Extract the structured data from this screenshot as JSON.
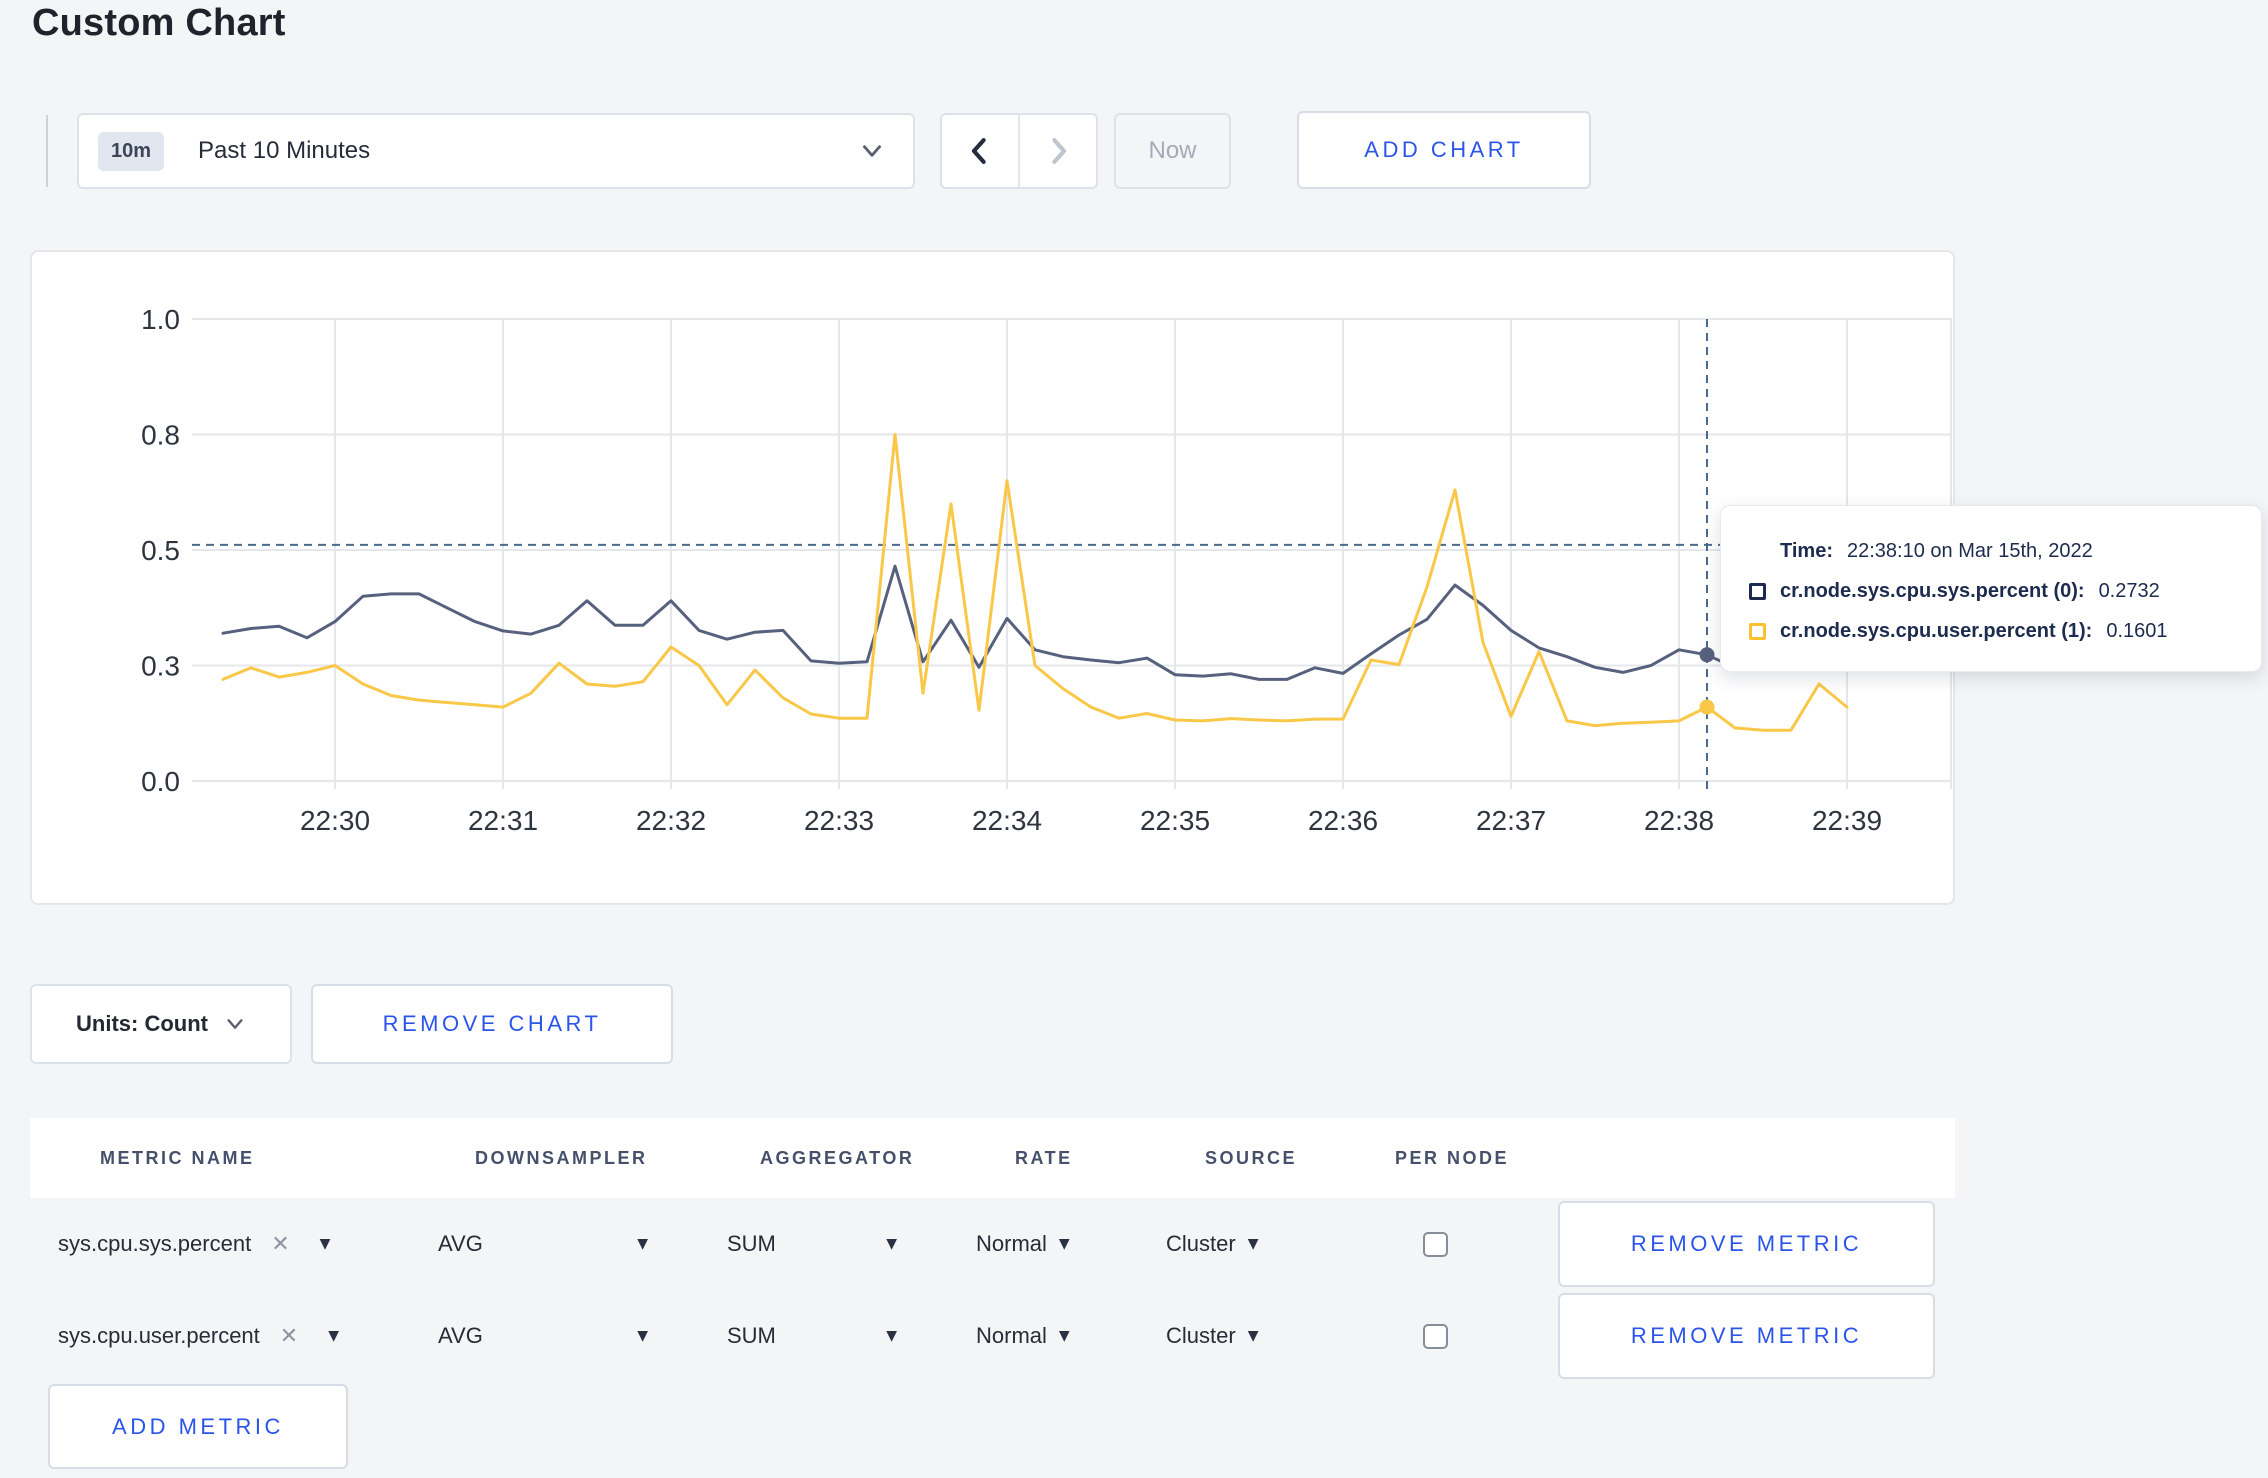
{
  "page": {
    "title": "Custom Chart",
    "background": "#f4f5f7",
    "accent_blue": "#2b55ea"
  },
  "toolbar": {
    "time_badge": "10m",
    "time_range_label": "Past 10 Minutes",
    "now_label": "Now",
    "add_chart_label": "ADD CHART"
  },
  "chart_data": {
    "type": "line",
    "title": "",
    "xlabel": "",
    "ylabel": "",
    "ylim": [
      0,
      1
    ],
    "grid": true,
    "legend_position": "none",
    "x_ticks": [
      "22:30",
      "22:31",
      "22:32",
      "22:33",
      "22:34",
      "22:35",
      "22:36",
      "22:37",
      "22:38",
      "22:39"
    ],
    "y_ticks": {
      "labels": [
        "0.0",
        "0.3",
        "0.5",
        "0.8",
        "1.0"
      ],
      "values": [
        0,
        0.25,
        0.5,
        0.75,
        1.0
      ]
    },
    "x_start": "22:29:20",
    "x_step_seconds": 10,
    "series": [
      {
        "name": "cr.node.sys.cpu.sys.percent",
        "color": "#57617e",
        "values": [
          0.32,
          0.33,
          0.335,
          0.31,
          0.345,
          0.4,
          0.405,
          0.405,
          0.375,
          0.345,
          0.325,
          0.318,
          0.337,
          0.39,
          0.337,
          0.337,
          0.39,
          0.326,
          0.307,
          0.322,
          0.326,
          0.26,
          0.255,
          0.258,
          0.465,
          0.258,
          0.348,
          0.246,
          0.352,
          0.284,
          0.269,
          0.262,
          0.256,
          0.266,
          0.23,
          0.227,
          0.232,
          0.22,
          0.22,
          0.245,
          0.233,
          0.275,
          0.316,
          0.35,
          0.424,
          0.38,
          0.326,
          0.288,
          0.269,
          0.246,
          0.235,
          0.25,
          0.284,
          0.2732,
          0.245,
          0.26,
          0.27,
          0.265,
          0.27
        ]
      },
      {
        "name": "cr.node.sys.cpu.user.percent",
        "color": "#f9c849",
        "values": [
          0.22,
          0.245,
          0.225,
          0.235,
          0.25,
          0.21,
          0.185,
          0.175,
          0.17,
          0.165,
          0.16,
          0.19,
          0.255,
          0.21,
          0.205,
          0.215,
          0.29,
          0.25,
          0.165,
          0.24,
          0.18,
          0.145,
          0.136,
          0.136,
          0.75,
          0.19,
          0.6,
          0.153,
          0.65,
          0.25,
          0.2,
          0.16,
          0.136,
          0.146,
          0.132,
          0.13,
          0.135,
          0.132,
          0.13,
          0.134,
          0.134,
          0.262,
          0.252,
          0.42,
          0.63,
          0.3,
          0.14,
          0.28,
          0.13,
          0.12,
          0.125,
          0.127,
          0.13,
          0.1601,
          0.115,
          0.11,
          0.11,
          0.21,
          0.16
        ]
      }
    ],
    "crosshair": {
      "time": "22:38:10",
      "y_value": 0.511,
      "series_values": [
        0.2732,
        0.1601
      ],
      "color": "#4a6a8f"
    },
    "gridline_color": "#e6e7ea",
    "axis_text_color": "#2e343e"
  },
  "tooltip": {
    "time_label": "Time:",
    "time_value": "22:38:10 on Mar 15th, 2022",
    "series": [
      {
        "label": "cr.node.sys.cpu.sys.percent (0):",
        "value": "0.2732",
        "color": "#1d2b4e"
      },
      {
        "label": "cr.node.sys.cpu.user.percent (1):",
        "value": "0.1601",
        "color": "#fdc02f"
      }
    ]
  },
  "chart_footer": {
    "units_label": "Units: Count",
    "remove_chart_label": "REMOVE CHART"
  },
  "metrics_table": {
    "headers": [
      "METRIC NAME",
      "DOWNSAMPLER",
      "AGGREGATOR",
      "RATE",
      "SOURCE",
      "PER NODE"
    ],
    "remove_metric_label": "REMOVE METRIC",
    "add_metric_label": "ADD METRIC",
    "rows": [
      {
        "metric_name": "sys.cpu.sys.percent",
        "downsampler": "AVG",
        "aggregator": "SUM",
        "rate": "Normal",
        "source": "Cluster",
        "per_node_checked": false
      },
      {
        "metric_name": "sys.cpu.user.percent",
        "downsampler": "AVG",
        "aggregator": "SUM",
        "rate": "Normal",
        "source": "Cluster",
        "per_node_checked": false
      }
    ]
  }
}
